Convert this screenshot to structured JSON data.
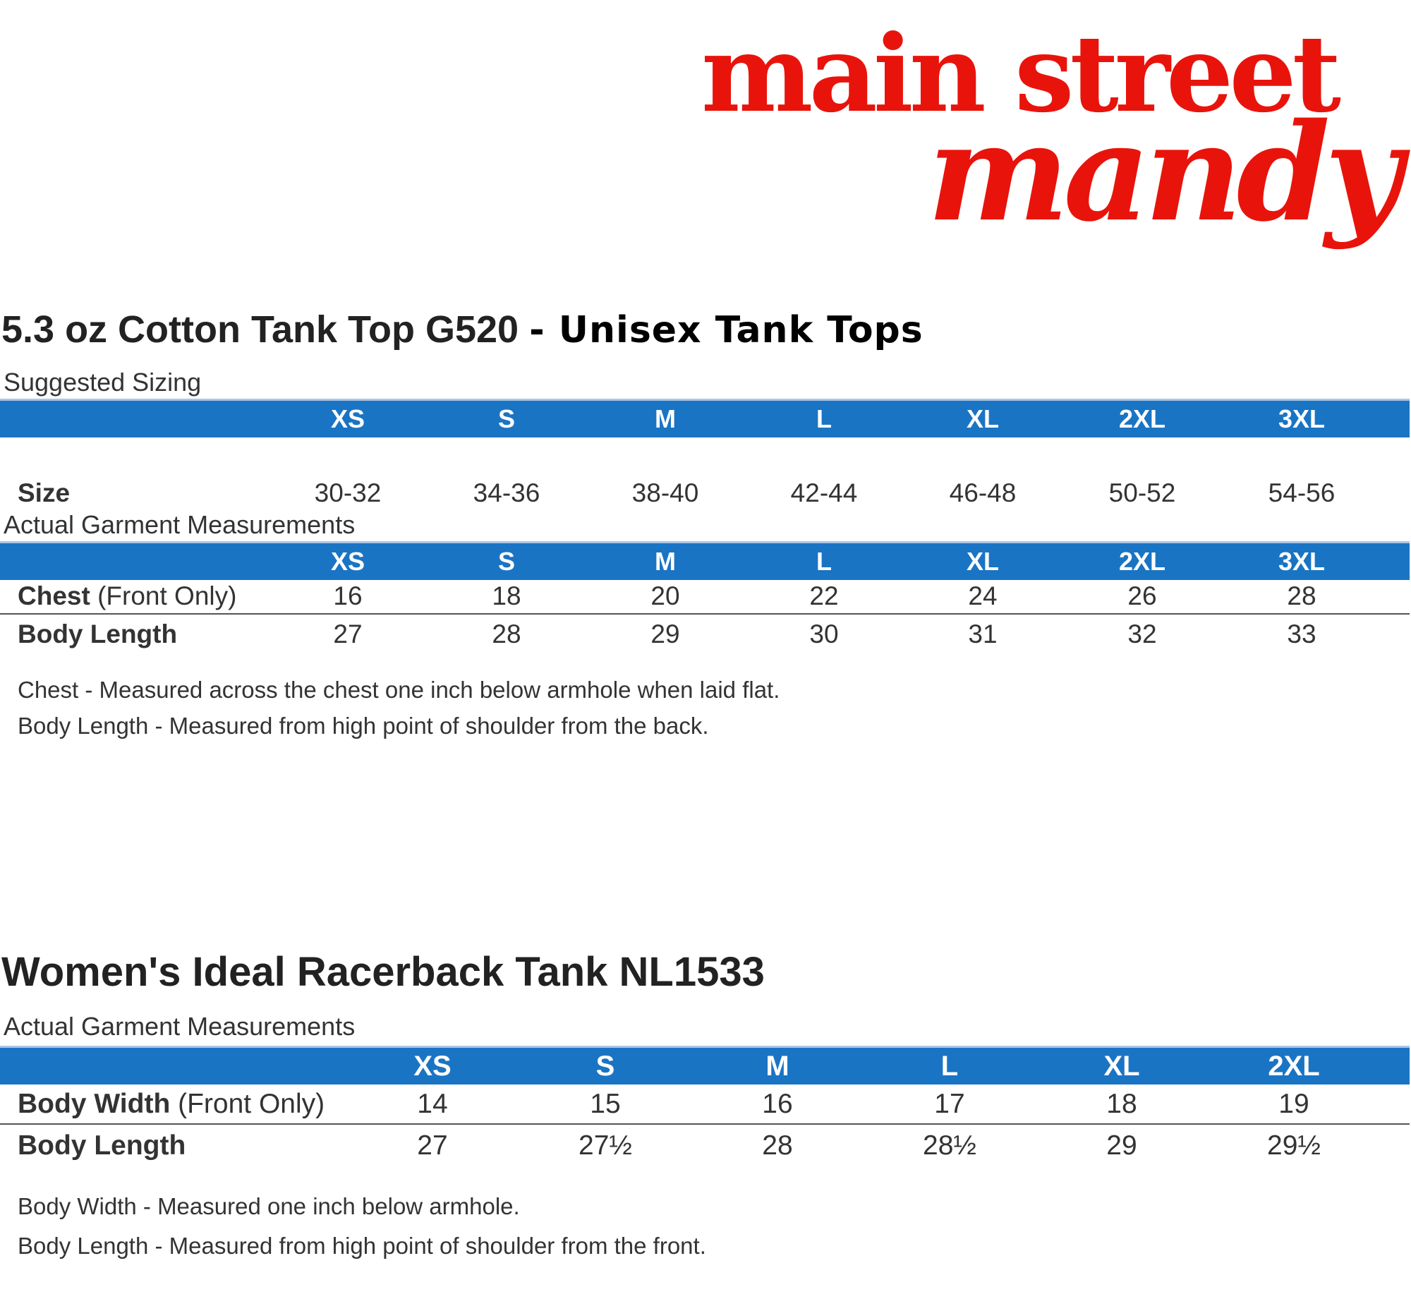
{
  "colors": {
    "brand_red": "#e8140c",
    "header_blue": "#1a74c4",
    "text": "#333333"
  },
  "logo": {
    "line1": "main street",
    "line2": "mandy"
  },
  "section1": {
    "title_main": "5.3 oz Cotton Tank Top G520",
    "title_sub": "- Unisex Tank Tops",
    "suggested_caption": "Suggested Sizing",
    "sizes": [
      "XS",
      "S",
      "M",
      "L",
      "XL",
      "2XL",
      "3XL"
    ],
    "size_row": {
      "label": "Size",
      "values": [
        "30-32",
        "34-36",
        "38-40",
        "42-44",
        "46-48",
        "50-52",
        "54-56"
      ]
    },
    "measure_caption": "Actual Garment Measurements",
    "chest_row": {
      "label_bold": "Chest",
      "label_rest": " (Front Only)",
      "values": [
        "16",
        "18",
        "20",
        "22",
        "24",
        "26",
        "28"
      ]
    },
    "length_row": {
      "label_bold": "Body Length",
      "values": [
        "27",
        "28",
        "29",
        "30",
        "31",
        "32",
        "33"
      ]
    },
    "notes": [
      "Chest - Measured across the chest one inch below armhole when laid flat.",
      "Body Length - Measured from high point of shoulder from the back."
    ]
  },
  "section2": {
    "title_main": "Women's Ideal Racerback Tank NL1533",
    "measure_caption": "Actual Garment Measurements",
    "sizes": [
      "XS",
      "S",
      "M",
      "L",
      "XL",
      "2XL"
    ],
    "width_row": {
      "label_bold": "Body Width",
      "label_rest": " (Front Only)",
      "values": [
        "14",
        "15",
        "16",
        "17",
        "18",
        "19"
      ]
    },
    "length_row": {
      "label_bold": "Body Length",
      "values": [
        "27",
        "27½",
        "28",
        "28½",
        "29",
        "29½"
      ]
    },
    "notes": [
      "Body Width - Measured one inch below armhole.",
      "Body Length - Measured from high point of shoulder from the front."
    ]
  }
}
